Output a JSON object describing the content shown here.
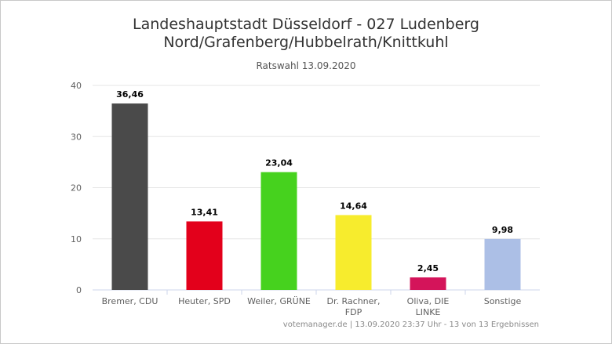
{
  "chart_data": {
    "type": "bar",
    "title_line1": "Landeshauptstadt Düsseldorf - 027 Ludenberg",
    "title_line2": "Nord/Grafenberg/Hubbelrath/Knittkuhl",
    "subtitle": "Ratswahl 13.09.2020",
    "categories": [
      [
        "Bremer, CDU"
      ],
      [
        "Heuter, SPD"
      ],
      [
        "Weiler, GRÜNE"
      ],
      [
        "Dr. Rachner,",
        "FDP"
      ],
      [
        "Oliva, DIE",
        "LINKE"
      ],
      [
        "Sonstige"
      ]
    ],
    "values": [
      36.46,
      13.41,
      23.04,
      14.64,
      2.45,
      9.98
    ],
    "value_labels": [
      "36,46",
      "13,41",
      "23,04",
      "14,64",
      "2,45",
      "9,98"
    ],
    "colors": [
      "#4a4a4a",
      "#e3001b",
      "#46d21e",
      "#f7ec2d",
      "#d4145a",
      "#acbfe6"
    ],
    "ylim": [
      0,
      40
    ],
    "yticks": [
      0,
      10,
      20,
      30,
      40
    ],
    "grid": true,
    "xlabel": "",
    "ylabel": ""
  },
  "credits": "votemanager.de | 13.09.2020 23:37 Uhr - 13 von 13 Ergebnissen"
}
